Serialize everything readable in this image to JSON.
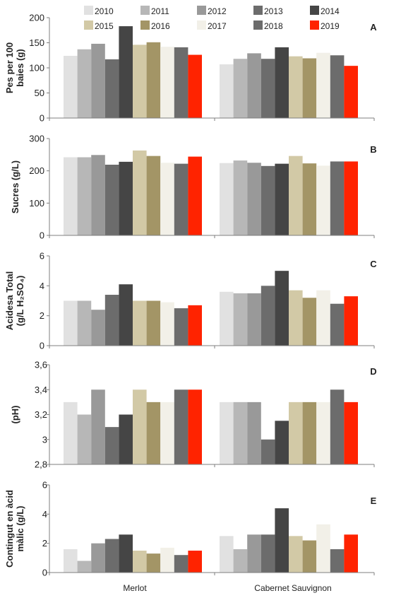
{
  "legend": {
    "position": "top",
    "entries": [
      {
        "name": "2010",
        "color": "#e1e1e1"
      },
      {
        "name": "2011",
        "color": "#b7b7b7"
      },
      {
        "name": "2012",
        "color": "#999999"
      },
      {
        "name": "2013",
        "color": "#6c6c6c"
      },
      {
        "name": "2014",
        "color": "#454545"
      },
      {
        "name": "2015",
        "color": "#d2c9a6"
      },
      {
        "name": "2016",
        "color": "#a39566"
      },
      {
        "name": "2017",
        "color": "#f2f0e8"
      },
      {
        "name": "2018",
        "color": "#6c6c6c"
      },
      {
        "name": "2019",
        "color": "#ff2300"
      }
    ]
  },
  "categories": [
    "Merlot",
    "Cabernet Sauvignon"
  ],
  "chart_data": [
    {
      "type": "bar",
      "panel": "A",
      "ylabel": [
        "Pes per 100",
        "baies (g)"
      ],
      "ylim": [
        0,
        200
      ],
      "yticks": [
        "0",
        "50",
        "100",
        "150",
        "200"
      ],
      "grid": false,
      "categories": [
        "Merlot",
        "Cabernet Sauvignon"
      ],
      "series": [
        {
          "name": "2010",
          "values": [
            124,
            107
          ]
        },
        {
          "name": "2011",
          "values": [
            137,
            118
          ]
        },
        {
          "name": "2012",
          "values": [
            148,
            129
          ]
        },
        {
          "name": "2013",
          "values": [
            117,
            118
          ]
        },
        {
          "name": "2014",
          "values": [
            183,
            141
          ]
        },
        {
          "name": "2015",
          "values": [
            146,
            123
          ]
        },
        {
          "name": "2016",
          "values": [
            151,
            119
          ]
        },
        {
          "name": "2017",
          "values": [
            142,
            130
          ]
        },
        {
          "name": "2018",
          "values": [
            141,
            125
          ]
        },
        {
          "name": "2019",
          "values": [
            126,
            104
          ]
        }
      ]
    },
    {
      "type": "bar",
      "panel": "B",
      "ylabel": [
        "Sucres (g/L)"
      ],
      "ylim": [
        0,
        300
      ],
      "yticks": [
        "0",
        "100",
        "200",
        "300"
      ],
      "grid": false,
      "categories": [
        "Merlot",
        "Cabernet Sauvignon"
      ],
      "series": [
        {
          "name": "2010",
          "values": [
            242,
            224
          ]
        },
        {
          "name": "2011",
          "values": [
            242,
            232
          ]
        },
        {
          "name": "2012",
          "values": [
            249,
            225
          ]
        },
        {
          "name": "2013",
          "values": [
            219,
            215
          ]
        },
        {
          "name": "2014",
          "values": [
            228,
            222
          ]
        },
        {
          "name": "2015",
          "values": [
            263,
            246
          ]
        },
        {
          "name": "2016",
          "values": [
            246,
            223
          ]
        },
        {
          "name": "2017",
          "values": [
            225,
            216
          ]
        },
        {
          "name": "2018",
          "values": [
            222,
            229
          ]
        },
        {
          "name": "2019",
          "values": [
            244,
            229
          ]
        }
      ]
    },
    {
      "type": "bar",
      "panel": "C",
      "ylabel": [
        "Acidesa Total",
        "(g/L H₂SO₄)"
      ],
      "ylim": [
        0,
        6
      ],
      "yticks": [
        "0",
        "2",
        "4",
        "6"
      ],
      "grid": false,
      "categories": [
        "Merlot",
        "Cabernet Sauvignon"
      ],
      "series": [
        {
          "name": "2010",
          "values": [
            3.0,
            3.6
          ]
        },
        {
          "name": "2011",
          "values": [
            3.0,
            3.5
          ]
        },
        {
          "name": "2012",
          "values": [
            2.4,
            3.5
          ]
        },
        {
          "name": "2013",
          "values": [
            3.4,
            4.0
          ]
        },
        {
          "name": "2014",
          "values": [
            4.1,
            5.0
          ]
        },
        {
          "name": "2015",
          "values": [
            3.0,
            3.7
          ]
        },
        {
          "name": "2016",
          "values": [
            3.0,
            3.2
          ]
        },
        {
          "name": "2017",
          "values": [
            2.9,
            3.7
          ]
        },
        {
          "name": "2018",
          "values": [
            2.5,
            2.8
          ]
        },
        {
          "name": "2019",
          "values": [
            2.7,
            3.3
          ]
        }
      ]
    },
    {
      "type": "bar",
      "panel": "D",
      "ylabel": [
        "(pH)"
      ],
      "ylim": [
        2.8,
        3.6
      ],
      "yticks": [
        "2,8",
        "3",
        "3,2",
        "3,4",
        "3,6"
      ],
      "grid": false,
      "categories": [
        "Merlot",
        "Cabernet Sauvignon"
      ],
      "series": [
        {
          "name": "2010",
          "values": [
            3.3,
            3.3
          ]
        },
        {
          "name": "2011",
          "values": [
            3.2,
            3.3
          ]
        },
        {
          "name": "2012",
          "values": [
            3.4,
            3.3
          ]
        },
        {
          "name": "2013",
          "values": [
            3.1,
            3.0
          ]
        },
        {
          "name": "2014",
          "values": [
            3.2,
            3.15
          ]
        },
        {
          "name": "2015",
          "values": [
            3.4,
            3.3
          ]
        },
        {
          "name": "2016",
          "values": [
            3.3,
            3.3
          ]
        },
        {
          "name": "2017",
          "values": [
            3.3,
            3.3
          ]
        },
        {
          "name": "2018",
          "values": [
            3.4,
            3.4
          ]
        },
        {
          "name": "2019",
          "values": [
            3.4,
            3.3
          ]
        }
      ]
    },
    {
      "type": "bar",
      "panel": "E",
      "ylabel": [
        "Contingut en àcid",
        "màlic (g/L)"
      ],
      "ylim": [
        0,
        6
      ],
      "yticks": [
        "0",
        "2",
        "4",
        "6"
      ],
      "grid": false,
      "categories": [
        "Merlot",
        "Cabernet Sauvignon"
      ],
      "series": [
        {
          "name": "2010",
          "values": [
            1.6,
            2.5
          ]
        },
        {
          "name": "2011",
          "values": [
            0.8,
            1.6
          ]
        },
        {
          "name": "2012",
          "values": [
            2.0,
            2.6
          ]
        },
        {
          "name": "2013",
          "values": [
            2.3,
            2.6
          ]
        },
        {
          "name": "2014",
          "values": [
            2.6,
            4.4
          ]
        },
        {
          "name": "2015",
          "values": [
            1.5,
            2.5
          ]
        },
        {
          "name": "2016",
          "values": [
            1.3,
            2.2
          ]
        },
        {
          "name": "2017",
          "values": [
            1.7,
            3.3
          ]
        },
        {
          "name": "2018",
          "values": [
            1.2,
            1.6
          ]
        },
        {
          "name": "2019",
          "values": [
            1.5,
            2.6
          ]
        }
      ]
    }
  ]
}
